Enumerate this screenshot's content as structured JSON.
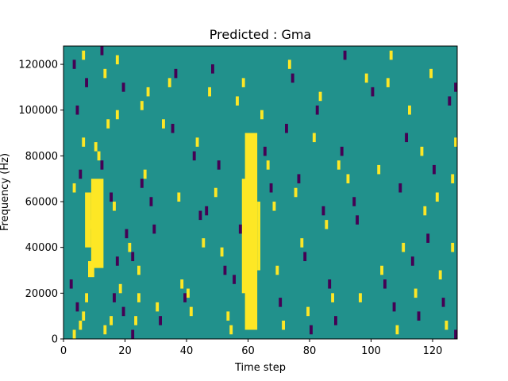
{
  "chart_data": {
    "type": "heatmap",
    "title": "Predicted : Gma",
    "xlabel": "Time step",
    "ylabel": "Frequency (Hz)",
    "xlim": [
      0,
      128
    ],
    "ylim": [
      0,
      128000
    ],
    "xticks": [
      0,
      20,
      40,
      60,
      80,
      100,
      120
    ],
    "yticks": [
      0,
      20000,
      40000,
      60000,
      80000,
      100000,
      120000
    ],
    "colormap": "viridis",
    "levels": [
      {
        "value": -1,
        "color": "#440154"
      },
      {
        "value": 0,
        "color": "#21918c"
      },
      {
        "value": 1,
        "color": "#fde725"
      }
    ],
    "background_value": 0,
    "grid": false,
    "legend": "none",
    "bands": [
      {
        "x0": 9,
        "x1": 13,
        "y0": 31000,
        "y1": 70000,
        "value": 1
      },
      {
        "x0": 7,
        "x1": 9,
        "y0": 40000,
        "y1": 64000,
        "value": 1
      },
      {
        "x0": 8,
        "x1": 10,
        "y0": 27000,
        "y1": 34000,
        "value": 1
      },
      {
        "x0": 59,
        "x1": 63,
        "y0": 4000,
        "y1": 90000,
        "value": 1
      },
      {
        "x0": 58,
        "x1": 60,
        "y0": 20000,
        "y1": 70000,
        "value": 1
      },
      {
        "x0": 63,
        "x1": 64,
        "y0": 30000,
        "y1": 60000,
        "value": 1
      }
    ],
    "scatter_cells": [
      {
        "x": 3,
        "y": 2000,
        "value": 1
      },
      {
        "x": 5,
        "y": 6000,
        "value": 1
      },
      {
        "x": 6,
        "y": 10000,
        "value": 1
      },
      {
        "x": 4,
        "y": 14000,
        "value": -1
      },
      {
        "x": 7,
        "y": 18000,
        "value": 1
      },
      {
        "x": 2,
        "y": 24000,
        "value": -1
      },
      {
        "x": 8,
        "y": 50000,
        "value": 1
      },
      {
        "x": 3,
        "y": 66000,
        "value": 1
      },
      {
        "x": 5,
        "y": 72000,
        "value": -1
      },
      {
        "x": 6,
        "y": 86000,
        "value": 1
      },
      {
        "x": 4,
        "y": 100000,
        "value": -1
      },
      {
        "x": 7,
        "y": 112000,
        "value": -1
      },
      {
        "x": 6,
        "y": 124000,
        "value": 1
      },
      {
        "x": 3,
        "y": 120000,
        "value": -1
      },
      {
        "x": 10,
        "y": 84000,
        "value": 1
      },
      {
        "x": 11,
        "y": 80000,
        "value": 1
      },
      {
        "x": 12,
        "y": 76000,
        "value": -1
      },
      {
        "x": 14,
        "y": 94000,
        "value": 1
      },
      {
        "x": 15,
        "y": 62000,
        "value": -1
      },
      {
        "x": 16,
        "y": 58000,
        "value": 1
      },
      {
        "x": 17,
        "y": 34000,
        "value": -1
      },
      {
        "x": 18,
        "y": 22000,
        "value": 1
      },
      {
        "x": 19,
        "y": 12000,
        "value": -1
      },
      {
        "x": 15,
        "y": 8000,
        "value": 1
      },
      {
        "x": 13,
        "y": 4000,
        "value": 1
      },
      {
        "x": 16,
        "y": 18000,
        "value": -1
      },
      {
        "x": 17,
        "y": 98000,
        "value": 1
      },
      {
        "x": 19,
        "y": 110000,
        "value": -1
      },
      {
        "x": 13,
        "y": 116000,
        "value": 1
      },
      {
        "x": 17,
        "y": 122000,
        "value": 1
      },
      {
        "x": 12,
        "y": 126000,
        "value": -1
      },
      {
        "x": 20,
        "y": 46000,
        "value": -1
      },
      {
        "x": 21,
        "y": 40000,
        "value": 1
      },
      {
        "x": 22,
        "y": 36000,
        "value": -1
      },
      {
        "x": 24,
        "y": 30000,
        "value": 1
      },
      {
        "x": 25,
        "y": 68000,
        "value": -1
      },
      {
        "x": 26,
        "y": 72000,
        "value": 1
      },
      {
        "x": 23,
        "y": 8000,
        "value": 1
      },
      {
        "x": 22,
        "y": 2000,
        "value": -1
      },
      {
        "x": 24,
        "y": 18000,
        "value": 1
      },
      {
        "x": 25,
        "y": 102000,
        "value": 1
      },
      {
        "x": 27,
        "y": 108000,
        "value": 1
      },
      {
        "x": 29,
        "y": 48000,
        "value": -1
      },
      {
        "x": 28,
        "y": 60000,
        "value": -1
      },
      {
        "x": 30,
        "y": 14000,
        "value": 1
      },
      {
        "x": 31,
        "y": 8000,
        "value": -1
      },
      {
        "x": 32,
        "y": 94000,
        "value": 1
      },
      {
        "x": 34,
        "y": 112000,
        "value": 1
      },
      {
        "x": 35,
        "y": 92000,
        "value": -1
      },
      {
        "x": 36,
        "y": 116000,
        "value": -1
      },
      {
        "x": 37,
        "y": 62000,
        "value": 1
      },
      {
        "x": 38,
        "y": 24000,
        "value": 1
      },
      {
        "x": 39,
        "y": 18000,
        "value": -1
      },
      {
        "x": 40,
        "y": 20000,
        "value": 1
      },
      {
        "x": 41,
        "y": 12000,
        "value": 1
      },
      {
        "x": 42,
        "y": 80000,
        "value": -1
      },
      {
        "x": 43,
        "y": 86000,
        "value": 1
      },
      {
        "x": 44,
        "y": 54000,
        "value": -1
      },
      {
        "x": 45,
        "y": 42000,
        "value": 1
      },
      {
        "x": 46,
        "y": 56000,
        "value": -1
      },
      {
        "x": 47,
        "y": 108000,
        "value": 1
      },
      {
        "x": 48,
        "y": 118000,
        "value": -1
      },
      {
        "x": 49,
        "y": 64000,
        "value": 1
      },
      {
        "x": 50,
        "y": 76000,
        "value": -1
      },
      {
        "x": 51,
        "y": 38000,
        "value": 1
      },
      {
        "x": 52,
        "y": 30000,
        "value": -1
      },
      {
        "x": 53,
        "y": 10000,
        "value": 1
      },
      {
        "x": 54,
        "y": 4000,
        "value": 1
      },
      {
        "x": 55,
        "y": 26000,
        "value": -1
      },
      {
        "x": 56,
        "y": 104000,
        "value": 1
      },
      {
        "x": 57,
        "y": 48000,
        "value": -1
      },
      {
        "x": 58,
        "y": 112000,
        "value": 1
      },
      {
        "x": 64,
        "y": 98000,
        "value": 1
      },
      {
        "x": 65,
        "y": 82000,
        "value": -1
      },
      {
        "x": 66,
        "y": 76000,
        "value": 1
      },
      {
        "x": 67,
        "y": 66000,
        "value": -1
      },
      {
        "x": 68,
        "y": 58000,
        "value": 1
      },
      {
        "x": 69,
        "y": 30000,
        "value": 1
      },
      {
        "x": 70,
        "y": 16000,
        "value": -1
      },
      {
        "x": 71,
        "y": 6000,
        "value": 1
      },
      {
        "x": 72,
        "y": 92000,
        "value": -1
      },
      {
        "x": 73,
        "y": 120000,
        "value": 1
      },
      {
        "x": 74,
        "y": 114000,
        "value": -1
      },
      {
        "x": 75,
        "y": 64000,
        "value": 1
      },
      {
        "x": 76,
        "y": 70000,
        "value": -1
      },
      {
        "x": 77,
        "y": 42000,
        "value": 1
      },
      {
        "x": 78,
        "y": 36000,
        "value": -1
      },
      {
        "x": 79,
        "y": 12000,
        "value": 1
      },
      {
        "x": 80,
        "y": 4000,
        "value": -1
      },
      {
        "x": 81,
        "y": 88000,
        "value": 1
      },
      {
        "x": 82,
        "y": 100000,
        "value": -1
      },
      {
        "x": 83,
        "y": 106000,
        "value": 1
      },
      {
        "x": 84,
        "y": 56000,
        "value": -1
      },
      {
        "x": 85,
        "y": 50000,
        "value": 1
      },
      {
        "x": 86,
        "y": 24000,
        "value": -1
      },
      {
        "x": 87,
        "y": 18000,
        "value": 1
      },
      {
        "x": 88,
        "y": 8000,
        "value": -1
      },
      {
        "x": 89,
        "y": 76000,
        "value": 1
      },
      {
        "x": 90,
        "y": 82000,
        "value": -1
      },
      {
        "x": 91,
        "y": 124000,
        "value": -1
      },
      {
        "x": 92,
        "y": 70000,
        "value": 1
      },
      {
        "x": 94,
        "y": 60000,
        "value": -1
      },
      {
        "x": 95,
        "y": 52000,
        "value": -1
      },
      {
        "x": 96,
        "y": 18000,
        "value": 1
      },
      {
        "x": 98,
        "y": 114000,
        "value": 1
      },
      {
        "x": 100,
        "y": 108000,
        "value": -1
      },
      {
        "x": 102,
        "y": 74000,
        "value": 1
      },
      {
        "x": 103,
        "y": 30000,
        "value": 1
      },
      {
        "x": 104,
        "y": 24000,
        "value": -1
      },
      {
        "x": 105,
        "y": 112000,
        "value": 1
      },
      {
        "x": 106,
        "y": 124000,
        "value": 1
      },
      {
        "x": 107,
        "y": 14000,
        "value": -1
      },
      {
        "x": 108,
        "y": 4000,
        "value": 1
      },
      {
        "x": 109,
        "y": 66000,
        "value": -1
      },
      {
        "x": 110,
        "y": 40000,
        "value": 1
      },
      {
        "x": 111,
        "y": 88000,
        "value": -1
      },
      {
        "x": 112,
        "y": 100000,
        "value": 1
      },
      {
        "x": 113,
        "y": 34000,
        "value": -1
      },
      {
        "x": 114,
        "y": 20000,
        "value": 1
      },
      {
        "x": 115,
        "y": 10000,
        "value": -1
      },
      {
        "x": 116,
        "y": 82000,
        "value": 1
      },
      {
        "x": 117,
        "y": 56000,
        "value": 1
      },
      {
        "x": 118,
        "y": 44000,
        "value": -1
      },
      {
        "x": 119,
        "y": 116000,
        "value": 1
      },
      {
        "x": 120,
        "y": 74000,
        "value": -1
      },
      {
        "x": 121,
        "y": 62000,
        "value": 1
      },
      {
        "x": 122,
        "y": 28000,
        "value": 1
      },
      {
        "x": 123,
        "y": 16000,
        "value": -1
      },
      {
        "x": 124,
        "y": 6000,
        "value": 1
      },
      {
        "x": 125,
        "y": 104000,
        "value": -1
      },
      {
        "x": 126,
        "y": 70000,
        "value": 1
      },
      {
        "x": 127,
        "y": 110000,
        "value": -1
      },
      {
        "x": 127,
        "y": 2000,
        "value": -1
      },
      {
        "x": 126,
        "y": 40000,
        "value": 1
      },
      {
        "x": 127,
        "y": 86000,
        "value": 1
      }
    ]
  }
}
